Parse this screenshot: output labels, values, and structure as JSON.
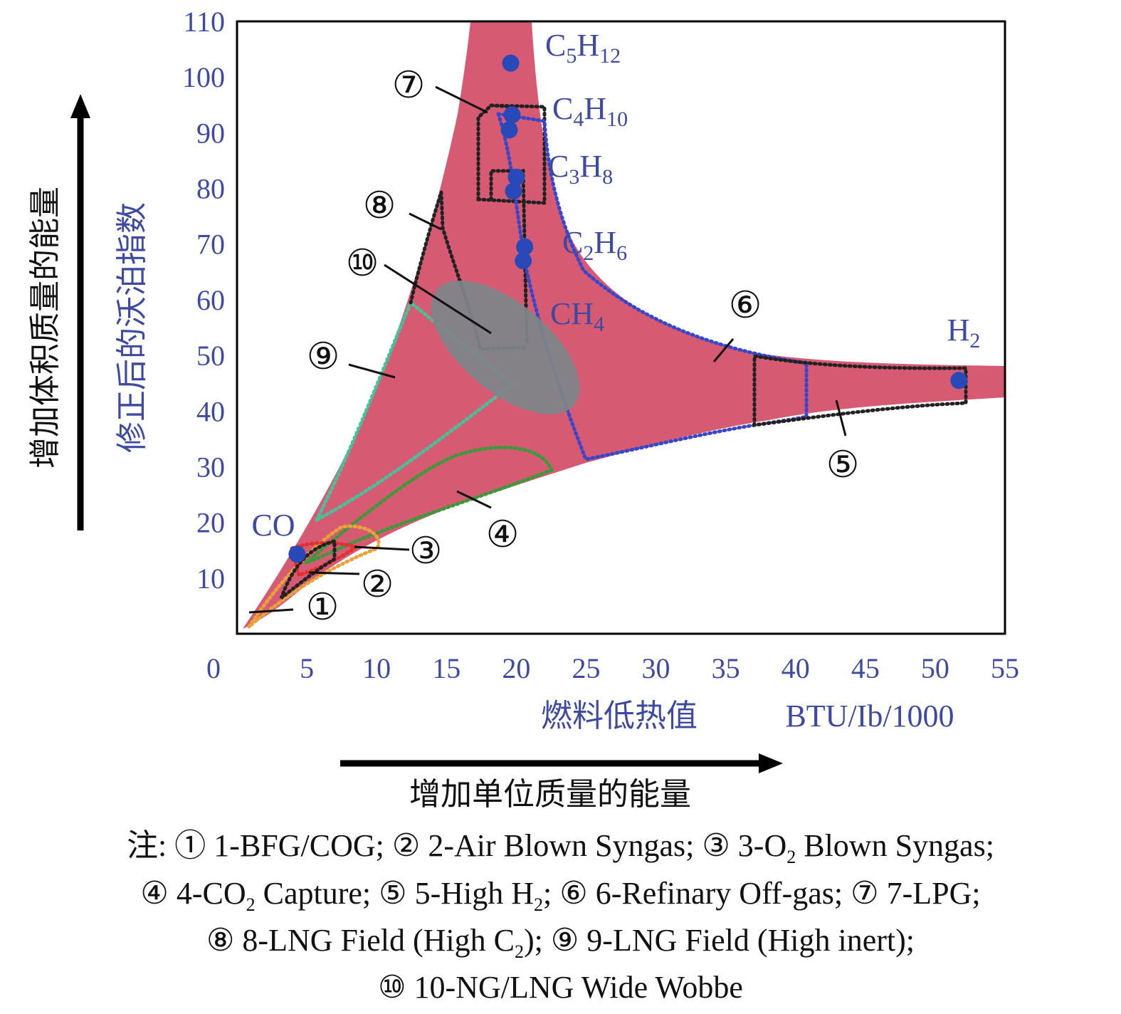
{
  "chart_data": {
    "type": "scatter",
    "xlabel": "燃料低热值",
    "xunit": "BTU/Ib/1000",
    "ylabel": "修正后的沃泊指数",
    "x_arrow_label": "增加单位质量的能量",
    "y_arrow_label": "增加体积质量的能量",
    "xlim": [
      0,
      55
    ],
    "ylim": [
      0,
      110
    ],
    "x_ticks": [
      "0",
      "5",
      "10",
      "15",
      "20",
      "25",
      "30",
      "35",
      "40",
      "45",
      "50",
      "55"
    ],
    "y_ticks": [
      "10",
      "20",
      "30",
      "40",
      "50",
      "60",
      "70",
      "80",
      "90",
      "100",
      "110"
    ],
    "grid": false,
    "colors": {
      "region": "#d75a73",
      "axis_text": "#3d4aa0",
      "ellipse": "#7d8589",
      "point": "#2a49b8"
    },
    "points": [
      {
        "name": "CO",
        "x": 4.3,
        "y": 14.3
      },
      {
        "name": "H2",
        "x": 51.7,
        "y": 45.5
      },
      {
        "name": "CH4",
        "x": 20.5,
        "y": 67
      },
      {
        "name": "C2H6",
        "x": 20.6,
        "y": 69.5
      },
      {
        "name": "C3H8",
        "x": 19.8,
        "y": 79.5
      },
      {
        "name": "C3H8",
        "x": 20,
        "y": 82
      },
      {
        "name": "C4H10",
        "x": 19.5,
        "y": 90.5
      },
      {
        "name": "C4H10",
        "x": 19.7,
        "y": 93.2
      },
      {
        "name": "C5H12",
        "x": 19.6,
        "y": 102.5
      }
    ],
    "species_labels": [
      {
        "id": "co",
        "main": "CO",
        "sub": ""
      },
      {
        "id": "c5",
        "main": "C",
        "n1": "5",
        "mid": "H",
        "sub": "12"
      },
      {
        "id": "c4",
        "main": "C",
        "n1": "4",
        "mid": "H",
        "sub": "10"
      },
      {
        "id": "c3",
        "main": "C",
        "n1": "3",
        "mid": "H",
        "sub": "8"
      },
      {
        "id": "c2",
        "main": "C",
        "n1": "2",
        "mid": "H",
        "sub": "6"
      },
      {
        "id": "ch4",
        "main": "CH",
        "sub": "4"
      },
      {
        "id": "h2",
        "main": "H",
        "sub": "2"
      }
    ],
    "region_markers": [
      "①",
      "②",
      "③",
      "④",
      "⑤",
      "⑥",
      "⑦",
      "⑧",
      "⑨",
      "⑩"
    ],
    "regions": [
      {
        "id": 1,
        "name": "1-BFG/COG"
      },
      {
        "id": 2,
        "name": "2-Air Blown Syngas"
      },
      {
        "id": 3,
        "name": "3-O2 Blown Syngas"
      },
      {
        "id": 4,
        "name": "4-CO2 Capture"
      },
      {
        "id": 5,
        "name": "5-High H2"
      },
      {
        "id": 6,
        "name": "6-Refinary Off-gas"
      },
      {
        "id": 7,
        "name": "7-LPG"
      },
      {
        "id": 8,
        "name": "8-LNG Field (High C2)"
      },
      {
        "id": 9,
        "name": "9-LNG Field (High inert)"
      },
      {
        "id": 10,
        "name": "10-NG/LNG Wide Wobbe"
      }
    ]
  },
  "note": {
    "prefix": "注:",
    "line1": [
      {
        "mk": "①",
        "t": "1-BFG/COG;"
      },
      {
        "mk": "②",
        "t": "2-Air Blown Syngas;"
      },
      {
        "mk": "③",
        "t": "3-O",
        "sub": "2",
        "t2": "Blown Syngas;"
      }
    ],
    "line2": [
      {
        "mk": "④",
        "t": "4-CO",
        "sub": "2",
        "t2": "Capture;"
      },
      {
        "mk": "⑤",
        "t": "5-High H",
        "sub": "2",
        "t2": ";"
      },
      {
        "mk": "⑥",
        "t": "6-Refinary Off-gas;"
      },
      {
        "mk": "⑦",
        "t": "7-LPG;"
      }
    ],
    "line3": [
      {
        "mk": "⑧",
        "t": "8-LNG Field (High C",
        "sub": "2",
        "t2": ");"
      },
      {
        "mk": "⑨",
        "t": "9-LNG Field (High inert);"
      }
    ],
    "line4": [
      {
        "mk": "⑩",
        "t": "10-NG/LNG Wide Wobbe"
      }
    ]
  }
}
